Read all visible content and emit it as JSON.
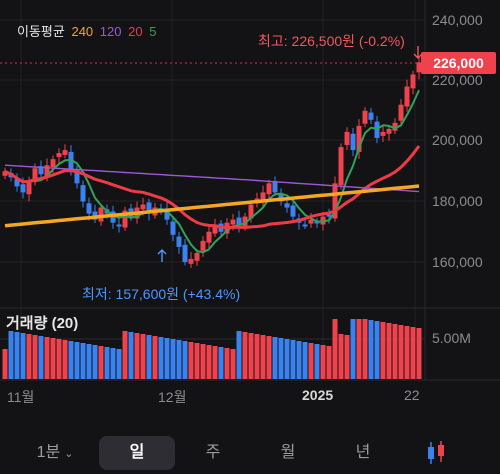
{
  "legend": {
    "title": "이동평균",
    "items": [
      {
        "label": "240",
        "color": "#f5a623"
      },
      {
        "label": "120",
        "color": "#9b59d6"
      },
      {
        "label": "20",
        "color": "#ef3b45"
      },
      {
        "label": "5",
        "color": "#2fa35a"
      }
    ]
  },
  "high_note": "최고: 226,500원 (-0.2%)",
  "low_note": "최저: 157,600원 (+43.4%)",
  "current_price": "226,000",
  "y_axis_labels": [
    "240,000",
    "220,000",
    "200,000",
    "180,000",
    "160,000"
  ],
  "volume": {
    "title": "거래량 (20)",
    "axis_label": "5.00M"
  },
  "x_axis_labels": [
    "11월",
    "12월",
    "2025",
    "22"
  ],
  "tabs": [
    {
      "label": "1분",
      "active": false
    },
    {
      "label": "일",
      "active": true
    },
    {
      "label": "주",
      "active": false
    },
    {
      "label": "월",
      "active": false
    },
    {
      "label": "년",
      "active": false
    }
  ],
  "colors": {
    "up": "#f0424c",
    "down": "#3a82f0",
    "ma240": "#f5a623",
    "ma120": "#9b59d6",
    "ma20": "#ef3b45",
    "ma5": "#2fa35a"
  },
  "candle_icon": "candlestick-icon"
}
